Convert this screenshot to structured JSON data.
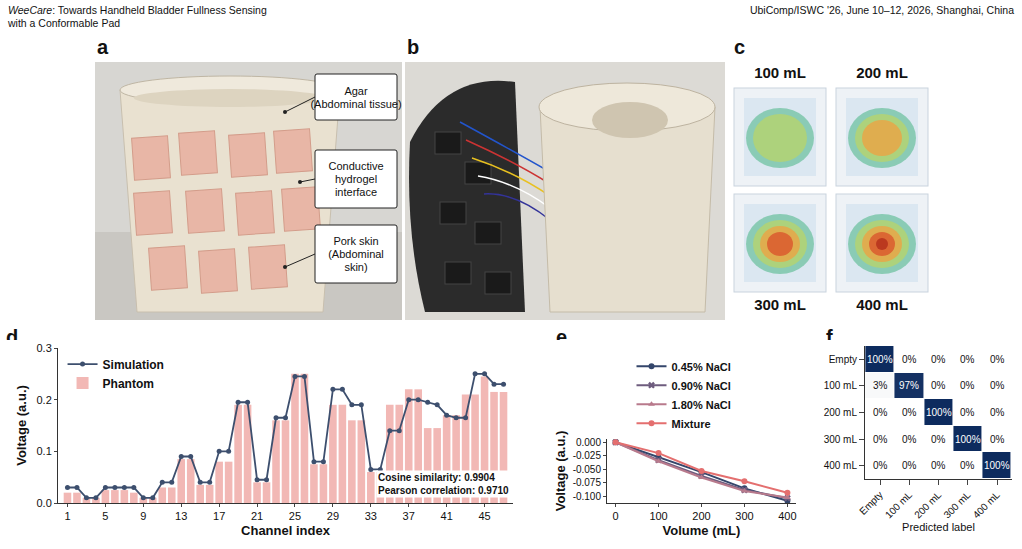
{
  "header": {
    "title_emph": "WeeCare",
    "title_rest": ": Towards Handheld Bladder Fullness Sensing",
    "title_line2": "with a Conformable Pad",
    "venue": "UbiComp/ISWC '26, June 10–12, 2026, Shanghai, China"
  },
  "panels": {
    "a": {
      "letter": "a",
      "callouts": [
        [
          "Agar",
          "(Abdominal tissue)"
        ],
        [
          "Conductive",
          "hydrogel",
          "interface"
        ],
        [
          "Pork skin",
          "(Abdominal",
          "skin)"
        ]
      ]
    },
    "b": {
      "letter": "b"
    },
    "c": {
      "letter": "c",
      "labels": [
        "100 mL",
        "200 mL",
        "300 mL",
        "400 mL"
      ]
    }
  },
  "chart_data": [
    {
      "panel": "d",
      "type": "bar",
      "x_label": "Channel index",
      "y_label": "Voltage (a.u.)",
      "x": [
        1,
        2,
        3,
        4,
        5,
        6,
        7,
        8,
        9,
        10,
        11,
        12,
        13,
        14,
        15,
        16,
        17,
        18,
        19,
        20,
        21,
        22,
        23,
        24,
        25,
        26,
        27,
        28,
        29,
        30,
        31,
        32,
        33,
        34,
        35,
        36,
        37,
        38,
        39,
        40,
        41,
        42,
        43,
        44,
        45,
        46,
        47
      ],
      "series": [
        {
          "name": "Simulation",
          "type": "line",
          "color": "#3d4f6e",
          "marker": "circle",
          "values": [
            0.03,
            0.03,
            0.01,
            0.01,
            0.03,
            0.03,
            0.03,
            0.03,
            0.01,
            0.01,
            0.04,
            0.04,
            0.09,
            0.09,
            0.04,
            0.04,
            0.1,
            0.1,
            0.195,
            0.195,
            0.045,
            0.045,
            0.165,
            0.165,
            0.245,
            0.245,
            0.08,
            0.08,
            0.22,
            0.22,
            0.19,
            0.19,
            0.065,
            0.065,
            0.14,
            0.14,
            0.2,
            0.2,
            0.195,
            0.19,
            0.17,
            0.165,
            0.165,
            0.25,
            0.25,
            0.23,
            0.23
          ]
        },
        {
          "name": "Phantom",
          "type": "bar",
          "color": "#f2b8b5",
          "values": [
            0.02,
            0.02,
            0.01,
            0.01,
            0.025,
            0.025,
            0.025,
            0.02,
            0.01,
            0.01,
            0.03,
            0.03,
            0.085,
            0.085,
            0.035,
            0.035,
            0.08,
            0.08,
            0.19,
            0.19,
            0.04,
            0.04,
            0.16,
            0.16,
            0.25,
            0.25,
            0.075,
            0.075,
            0.19,
            0.19,
            0.16,
            0.16,
            0.06,
            0.06,
            0.19,
            0.19,
            0.22,
            0.22,
            0.145,
            0.145,
            0.17,
            0.17,
            0.21,
            0.21,
            0.245,
            0.215,
            0.215
          ]
        }
      ],
      "xlim": [
        0,
        48
      ],
      "xticks": [
        1,
        5,
        9,
        13,
        17,
        21,
        25,
        29,
        33,
        37,
        41,
        45
      ],
      "ylim": [
        0,
        0.3
      ],
      "yticks": [
        {
          "value": 0,
          "label": "0.0"
        },
        0.1,
        0.2,
        0.3
      ],
      "annotations": [
        "Cosine similarity: 0.9904",
        "Pearson correlation: 0.9710"
      ],
      "legend": "top left"
    },
    {
      "panel": "e",
      "type": "line",
      "x_label": "Volume (mL)",
      "y_label": "Voltage (a.u.)",
      "x": [
        0,
        100,
        200,
        300,
        400
      ],
      "series": [
        {
          "name": "0.45% NaCl",
          "color": "#34466b",
          "marker": "circle",
          "values": [
            0,
            -0.028,
            -0.055,
            -0.085,
            -0.108
          ]
        },
        {
          "name": "0.90% NaCl",
          "color": "#6e5c7e",
          "marker": "x",
          "values": [
            0,
            -0.033,
            -0.062,
            -0.088,
            -0.103
          ]
        },
        {
          "name": "1.80% NaCl",
          "color": "#b87a8c",
          "marker": "triangle-up",
          "values": [
            0,
            -0.035,
            -0.065,
            -0.09,
            -0.102
          ]
        },
        {
          "name": "Mixture",
          "color": "#e46f6f",
          "marker": "circle",
          "values": [
            0,
            -0.02,
            -0.053,
            -0.072,
            -0.093
          ]
        }
      ],
      "xlim": [
        -20,
        420
      ],
      "xticks": [
        0,
        100,
        200,
        300,
        400
      ],
      "ylim": [
        -0.112,
        0.006
      ],
      "yticks": [
        {
          "value": 0,
          "label": "0.000"
        },
        {
          "value": -0.025,
          "label": "-0.025"
        },
        {
          "value": -0.05,
          "label": "-0.050"
        },
        {
          "value": -0.075,
          "label": "-0.075"
        },
        {
          "value": -0.1,
          "label": "-0.100"
        }
      ],
      "legend": "top"
    },
    {
      "panel": "f",
      "type": "heatmap",
      "x_label": "Predicted label",
      "categories": [
        "Empty",
        "100 mL",
        "200 mL",
        "300 mL",
        "400 mL"
      ],
      "cells": [
        [
          100,
          0,
          0,
          0,
          0
        ],
        [
          3,
          97,
          0,
          0,
          0
        ],
        [
          0,
          0,
          100,
          0,
          0
        ],
        [
          0,
          0,
          0,
          100,
          0
        ],
        [
          0,
          0,
          0,
          0,
          100
        ]
      ],
      "value_labels": [
        [
          "100%",
          "0%",
          "0%",
          "0%",
          "0%"
        ],
        [
          "3%",
          "97%",
          "0%",
          "0%",
          "0%"
        ],
        [
          "0%",
          "0%",
          "100%",
          "0%",
          "0%"
        ],
        [
          "0%",
          "0%",
          "0%",
          "100%",
          "0%"
        ],
        [
          "0%",
          "0%",
          "0%",
          "0%",
          "100%"
        ]
      ],
      "zlim": [
        0,
        100
      ],
      "color": "#0d2b5e",
      "data_labels": true
    }
  ]
}
